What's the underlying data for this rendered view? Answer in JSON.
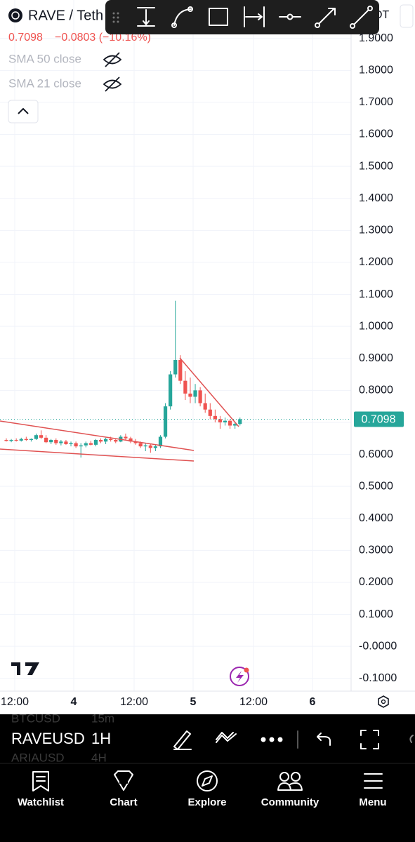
{
  "header": {
    "symbol": "RAVE / Teth",
    "price": "0.7098",
    "change": "−0.0803 (−10.16%)",
    "quote_hint": "DT"
  },
  "indicators": [
    "SMA 50 close",
    "SMA 21 close"
  ],
  "chart_data": {
    "type": "candlestick",
    "candles": {
      "open": [
        0.645,
        0.642,
        0.645,
        0.643,
        0.648,
        0.645,
        0.648,
        0.66,
        0.652,
        0.638,
        0.645,
        0.635,
        0.64,
        0.632,
        0.635,
        0.625,
        0.628,
        0.635,
        0.63,
        0.645,
        0.64,
        0.648,
        0.645,
        0.64,
        0.655,
        0.65,
        0.64,
        0.635,
        0.625,
        0.628,
        0.62,
        0.625,
        0.655,
        0.75,
        0.85,
        0.895,
        0.83,
        0.79,
        0.78,
        0.8,
        0.76,
        0.74,
        0.72,
        0.71,
        0.7,
        0.705,
        0.69,
        0.695
      ],
      "high": [
        0.65,
        0.648,
        0.65,
        0.652,
        0.655,
        0.65,
        0.665,
        0.675,
        0.66,
        0.648,
        0.65,
        0.645,
        0.645,
        0.64,
        0.64,
        0.635,
        0.64,
        0.642,
        0.648,
        0.65,
        0.652,
        0.655,
        0.65,
        0.66,
        0.665,
        0.655,
        0.648,
        0.64,
        0.635,
        0.632,
        0.63,
        0.66,
        0.76,
        0.86,
        1.08,
        0.91,
        0.86,
        0.84,
        0.82,
        0.81,
        0.79,
        0.76,
        0.74,
        0.72,
        0.715,
        0.71,
        0.7,
        0.715
      ],
      "low": [
        0.64,
        0.638,
        0.64,
        0.64,
        0.642,
        0.64,
        0.645,
        0.648,
        0.635,
        0.632,
        0.63,
        0.628,
        0.63,
        0.625,
        0.62,
        0.59,
        0.622,
        0.628,
        0.625,
        0.635,
        0.632,
        0.64,
        0.635,
        0.638,
        0.645,
        0.635,
        0.63,
        0.62,
        0.61,
        0.605,
        0.61,
        0.62,
        0.65,
        0.74,
        0.84,
        0.82,
        0.77,
        0.76,
        0.76,
        0.75,
        0.73,
        0.71,
        0.7,
        0.68,
        0.69,
        0.68,
        0.68,
        0.69
      ],
      "close": [
        0.642,
        0.645,
        0.643,
        0.648,
        0.645,
        0.648,
        0.66,
        0.652,
        0.638,
        0.645,
        0.635,
        0.64,
        0.632,
        0.635,
        0.625,
        0.628,
        0.635,
        0.63,
        0.645,
        0.64,
        0.648,
        0.645,
        0.64,
        0.655,
        0.65,
        0.64,
        0.635,
        0.625,
        0.628,
        0.62,
        0.625,
        0.655,
        0.75,
        0.85,
        0.895,
        0.83,
        0.79,
        0.78,
        0.8,
        0.76,
        0.74,
        0.72,
        0.71,
        0.7,
        0.705,
        0.69,
        0.695,
        0.7098
      ]
    },
    "last_label": {
      "value": 0.7098,
      "label": "0.7098"
    },
    "ylim": [
      -0.14,
      2.02
    ],
    "yticks": [
      {
        "value": 1.9,
        "label": "1.9000"
      },
      {
        "value": 1.8,
        "label": "1.8000"
      },
      {
        "value": 1.7,
        "label": "1.7000"
      },
      {
        "value": 1.6,
        "label": "1.6000"
      },
      {
        "value": 1.5,
        "label": "1.5000"
      },
      {
        "value": 1.4,
        "label": "1.4000"
      },
      {
        "value": 1.3,
        "label": "1.3000"
      },
      {
        "value": 1.2,
        "label": "1.2000"
      },
      {
        "value": 1.1,
        "label": "1.1000"
      },
      {
        "value": 1.0,
        "label": "1.0000"
      },
      {
        "value": 0.9,
        "label": "0.9000"
      },
      {
        "value": 0.8,
        "label": "0.8000"
      },
      {
        "value": 0.7,
        "label": "0.7000"
      },
      {
        "value": 0.6,
        "label": "0.6000"
      },
      {
        "value": 0.5,
        "label": "0.5000"
      },
      {
        "value": 0.4,
        "label": "0.4000"
      },
      {
        "value": 0.3,
        "label": "0.3000"
      },
      {
        "value": 0.2,
        "label": "0.2000"
      },
      {
        "value": 0.1,
        "label": "0.1000"
      },
      {
        "value": 0,
        "label": "-0.0000"
      },
      {
        "value": -0.1,
        "label": "-0.1000"
      }
    ],
    "x_labels": [
      "12:00",
      "4",
      "12:00",
      "5",
      "12:00",
      "6"
    ],
    "grid": true,
    "colors": {
      "up": "#26a69a",
      "down": "#ef5350"
    }
  },
  "symbol_picker": [
    {
      "symbol": "BTCUSD",
      "interval": "15m"
    },
    {
      "symbol": "RAVEUSD",
      "interval": "1H"
    },
    {
      "symbol": "ARIAUSD",
      "interval": "4H"
    }
  ],
  "nav": [
    "Watchlist",
    "Chart",
    "Explore",
    "Community",
    "Menu"
  ]
}
